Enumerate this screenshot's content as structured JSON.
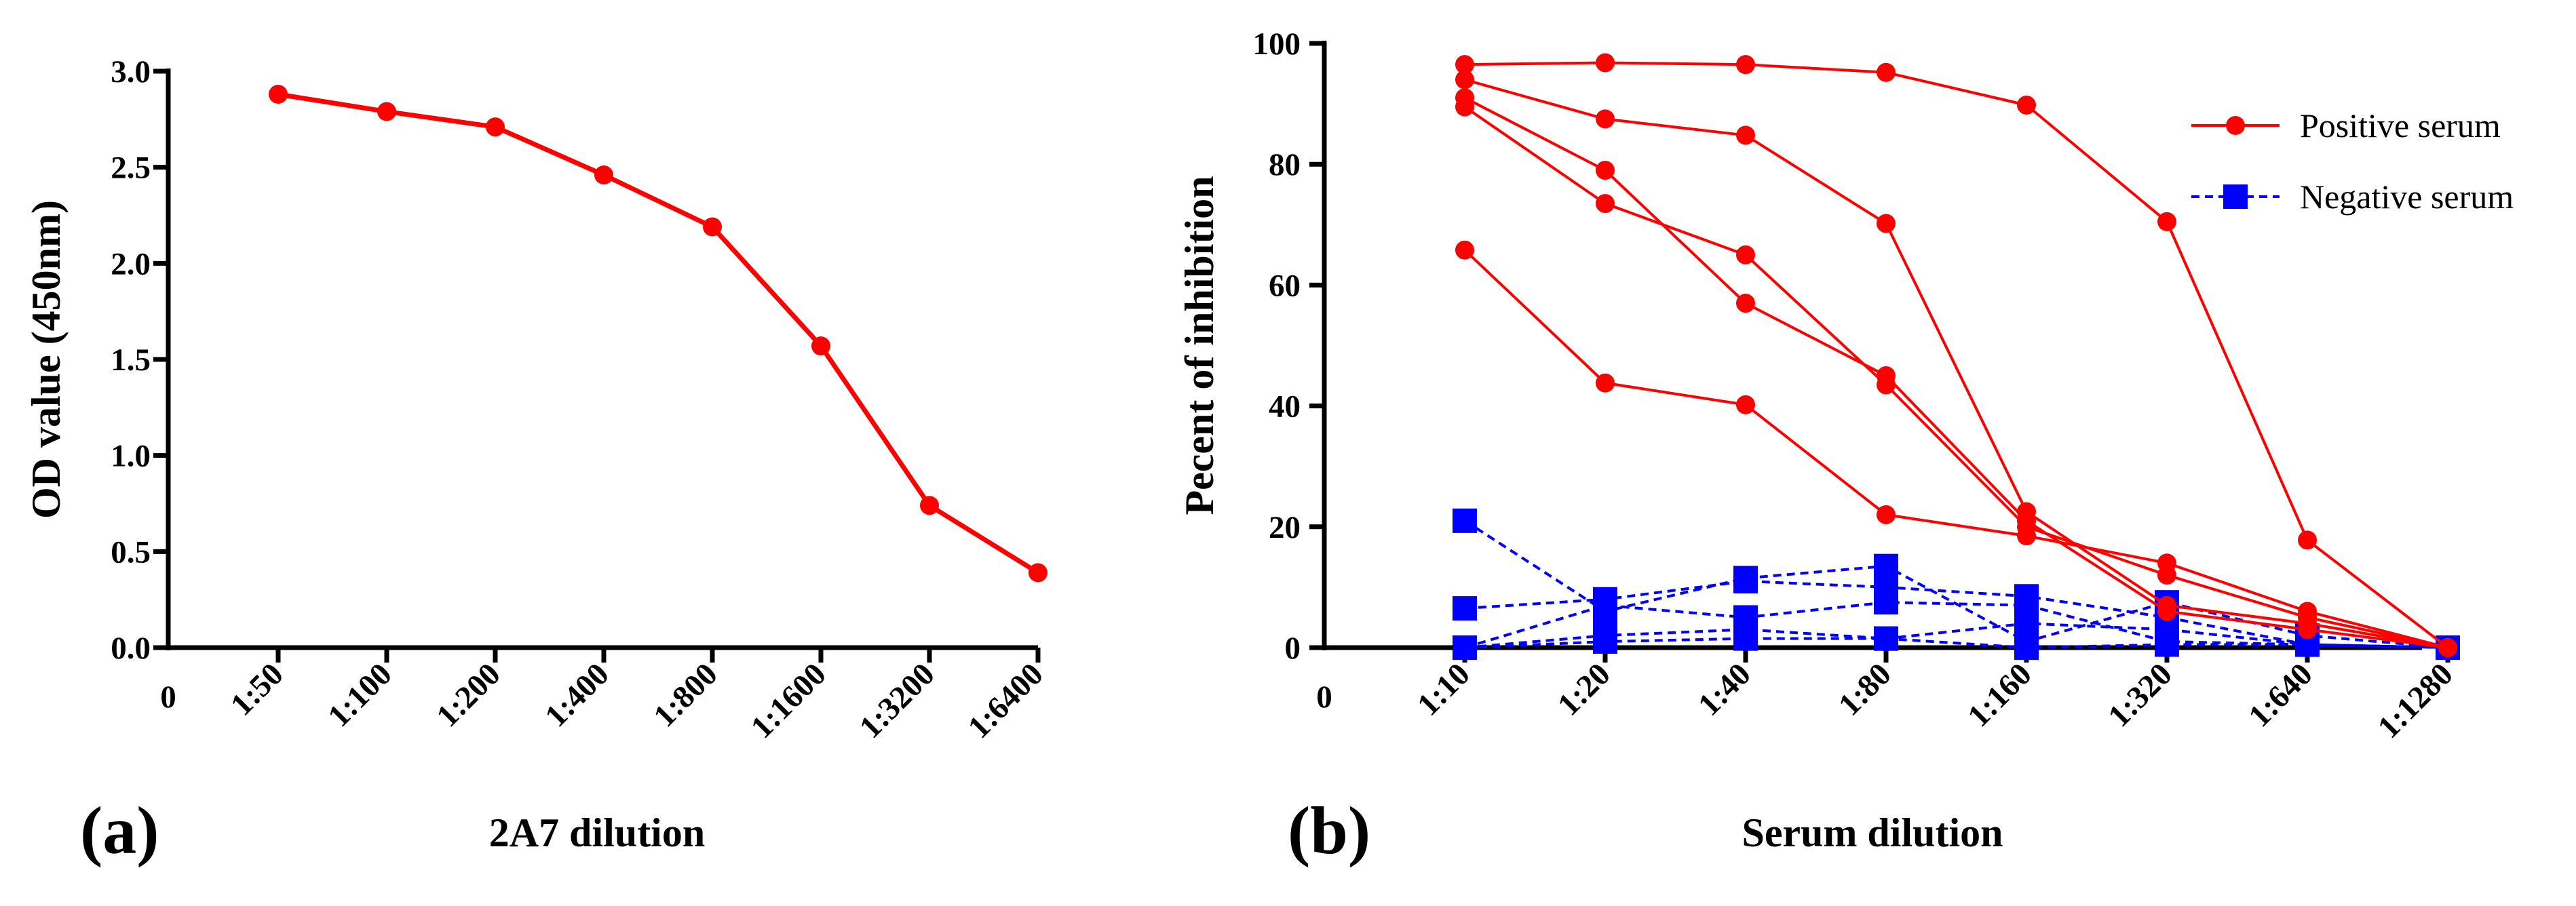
{
  "colors": {
    "positive": "#ff0000",
    "negative": "#0000ff",
    "axis": "#000000"
  },
  "chart_data": [
    {
      "type": "line",
      "panel_label": "(a)",
      "title": "",
      "xlabel": "2A7 dilution",
      "ylabel": "OD value (450nm)",
      "x_origin_label": "0",
      "categories": [
        "1:50",
        "1:100",
        "1:200",
        "1:400",
        "1:800",
        "1:1600",
        "1:3200",
        "1:6400"
      ],
      "yticks": [
        "0.0",
        "0.5",
        "1.0",
        "1.5",
        "2.0",
        "2.5",
        "3.0"
      ],
      "ylim": [
        0,
        3.0
      ],
      "series": [
        {
          "name": "2A7",
          "color": "#ff0000",
          "marker": "circle",
          "style": "solid",
          "values": [
            2.88,
            2.79,
            2.71,
            2.46,
            2.19,
            1.57,
            0.74,
            0.39
          ]
        }
      ]
    },
    {
      "type": "line",
      "panel_label": "(b)",
      "title": "",
      "xlabel": "Serum dilution",
      "ylabel": "Pecent of inhibition",
      "x_origin_label": "0",
      "categories": [
        "1:10",
        "1:20",
        "1:40",
        "1:80",
        "1:160",
        "1:320",
        "1:640",
        "1:1280"
      ],
      "yticks": [
        "0",
        "20",
        "40",
        "60",
        "80",
        "100"
      ],
      "ylim": [
        0,
        100
      ],
      "legend": {
        "position": "top-right",
        "entries": [
          {
            "label": "Positive serum",
            "color": "#ff0000",
            "marker": "circle",
            "style": "solid"
          },
          {
            "label": "Negative serum",
            "color": "#0000ff",
            "marker": "square",
            "style": "dashed"
          }
        ]
      },
      "series": [
        {
          "name": "Positive serum",
          "color": "#ff0000",
          "marker": "circle",
          "style": "solid",
          "values": [
            96.5,
            96.8,
            96.5,
            95.2,
            89.8,
            70.5,
            17.8,
            0
          ]
        },
        {
          "name": "Positive serum",
          "color": "#ff0000",
          "marker": "circle",
          "style": "solid",
          "values": [
            94,
            87.5,
            84.8,
            70.2,
            22.5,
            7,
            4,
            0
          ]
        },
        {
          "name": "Positive serum",
          "color": "#ff0000",
          "marker": "circle",
          "style": "solid",
          "values": [
            91,
            79,
            57,
            45,
            21,
            6,
            3,
            0
          ]
        },
        {
          "name": "Positive serum",
          "color": "#ff0000",
          "marker": "circle",
          "style": "solid",
          "values": [
            89.5,
            73.5,
            65,
            43.5,
            20,
            12,
            5,
            0
          ]
        },
        {
          "name": "Positive serum",
          "color": "#ff0000",
          "marker": "circle",
          "style": "solid",
          "values": [
            65.8,
            43.8,
            40.2,
            22,
            18.5,
            14,
            6,
            0
          ]
        },
        {
          "name": "Negative serum",
          "color": "#0000ff",
          "marker": "square",
          "style": "dashed",
          "values": [
            21,
            6,
            11.5,
            13.5,
            1,
            7.5,
            2,
            0
          ]
        },
        {
          "name": "Negative serum",
          "color": "#0000ff",
          "marker": "square",
          "style": "dashed",
          "values": [
            6.5,
            8,
            11,
            10,
            8.5,
            5,
            0.5,
            0
          ]
        },
        {
          "name": "Negative serum",
          "color": "#0000ff",
          "marker": "square",
          "style": "dashed",
          "values": [
            0,
            7,
            5,
            7.5,
            7,
            1,
            0.5,
            0
          ]
        },
        {
          "name": "Negative serum",
          "color": "#0000ff",
          "marker": "square",
          "style": "dashed",
          "values": [
            0,
            2,
            3,
            1.5,
            4,
            3,
            0.5,
            0
          ]
        },
        {
          "name": "Negative serum",
          "color": "#0000ff",
          "marker": "square",
          "style": "dashed",
          "values": [
            0,
            1,
            1.5,
            1.5,
            0,
            0.5,
            0.5,
            0
          ]
        }
      ]
    }
  ]
}
